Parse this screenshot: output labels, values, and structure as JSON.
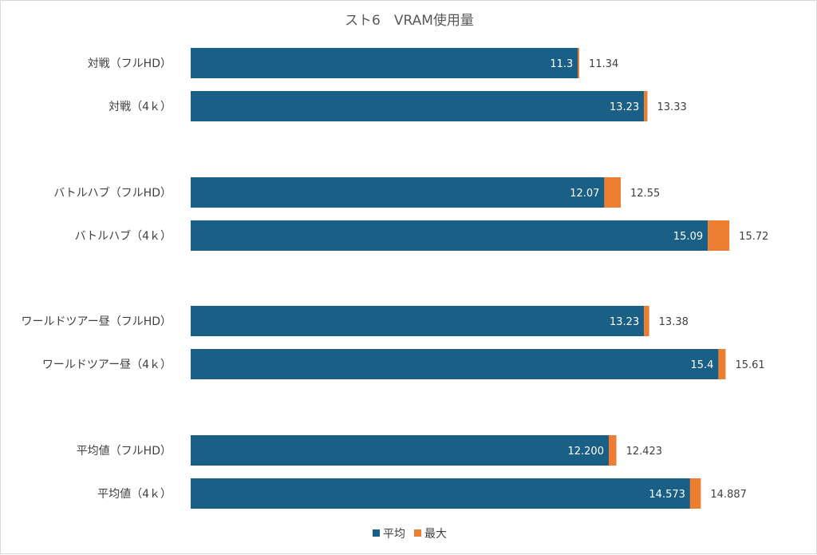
{
  "chart_data": {
    "type": "bar",
    "orientation": "horizontal",
    "title": "スト6　VRAM使用量",
    "categories": [
      "対戦（フルHD）",
      "対戦（4ｋ）",
      "バトルハブ（フルHD）",
      "バトルハブ（4ｋ）",
      "ワールドツアー昼（フルHD）",
      "ワールドツアー昼（4ｋ）",
      "平均値（フルHD）",
      "平均値（4ｋ）"
    ],
    "series": [
      {
        "name": "平均",
        "color": "#1a5f85",
        "values": [
          11.3,
          13.23,
          12.07,
          15.09,
          13.23,
          15.4,
          12.2,
          14.573
        ],
        "labels": [
          "11.3",
          "13.23",
          "12.07",
          "15.09",
          "13.23",
          "15.4",
          "12.200",
          "14.573"
        ]
      },
      {
        "name": "最大",
        "color": "#ed7d31",
        "values": [
          11.34,
          13.33,
          12.55,
          15.72,
          13.38,
          15.61,
          12.423,
          14.887
        ],
        "labels": [
          "11.34",
          "13.33",
          "12.55",
          "15.72",
          "13.38",
          "15.61",
          "12.423",
          "14.887"
        ]
      }
    ],
    "xlim": [
      0,
      16
    ],
    "grid": false,
    "legend_position": "bottom"
  }
}
